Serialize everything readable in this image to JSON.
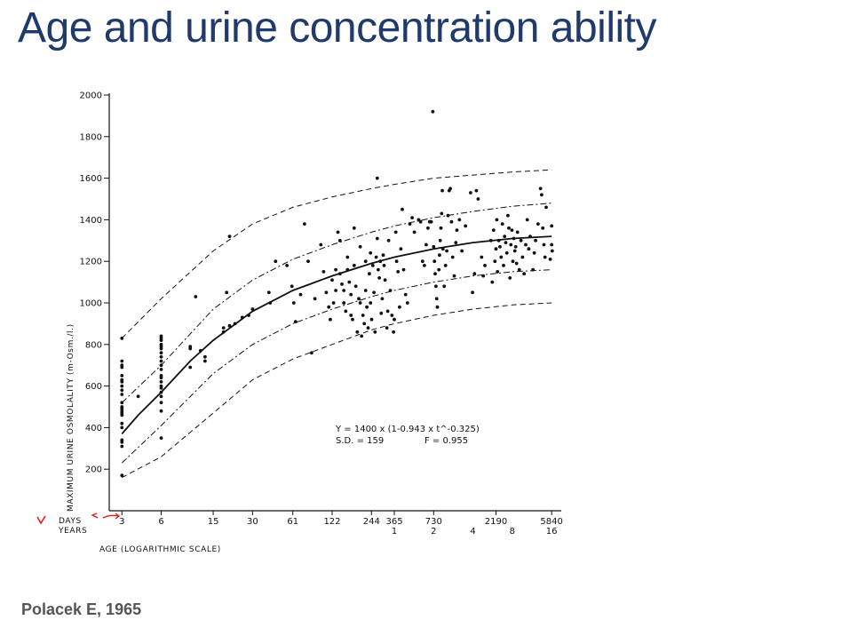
{
  "slide": {
    "title": "Age and urine concentration ability",
    "citation": "Polacek E, 1965"
  },
  "colors": {
    "title": "#1f3a6b",
    "citation": "#555555",
    "ink": "#111111",
    "annotation": "#e0201c"
  },
  "chart_data": {
    "type": "scatter",
    "x_scale": "log",
    "xlim": [
      2.4,
      6500
    ],
    "ylim": [
      0,
      2000
    ],
    "y_ticks": [
      200,
      400,
      600,
      800,
      1000,
      1200,
      1400,
      1600,
      1800,
      2000
    ],
    "x_ticks_days": [
      3,
      6,
      15,
      30,
      61,
      122,
      244,
      365,
      730,
      2190,
      5840
    ],
    "x_ticks_years": [
      {
        "days": 365,
        "label": "1"
      },
      {
        "days": 730,
        "label": "2"
      },
      {
        "days": 1460,
        "label": "4"
      },
      {
        "days": 2920,
        "label": "8"
      },
      {
        "days": 5840,
        "label": "16"
      }
    ],
    "days_label": "DAYS",
    "years_label": "YEARS",
    "xlabel": "AGE (LOGARITHMIC SCALE)",
    "ylabel": "MAXIMUM URINE OSMOLALITY (m-Osm./l.)",
    "equation": "Y = 1400 x (1-0.943 x t^-0.325)",
    "sd_text": "S.D. = 159",
    "f_text": "F = 0.955",
    "annotations": [
      "red check mark",
      "red arrow",
      "red arrow"
    ],
    "series": [
      {
        "style": "solid",
        "values": [
          [
            3,
            370
          ],
          [
            4,
            460
          ],
          [
            6,
            570
          ],
          [
            10,
            720
          ],
          [
            15,
            820
          ],
          [
            30,
            960
          ],
          [
            61,
            1060
          ],
          [
            122,
            1130
          ],
          [
            244,
            1190
          ],
          [
            365,
            1220
          ],
          [
            730,
            1260
          ],
          [
            1460,
            1290
          ],
          [
            2920,
            1310
          ],
          [
            5840,
            1320
          ]
        ]
      },
      {
        "style": "dashdot",
        "values": [
          [
            3,
            520
          ],
          [
            6,
            700
          ],
          [
            15,
            970
          ],
          [
            30,
            1110
          ],
          [
            61,
            1210
          ],
          [
            122,
            1280
          ],
          [
            244,
            1340
          ],
          [
            365,
            1370
          ],
          [
            730,
            1410
          ],
          [
            1460,
            1440
          ],
          [
            2920,
            1465
          ],
          [
            5840,
            1480
          ]
        ]
      },
      {
        "style": "dashdot",
        "values": [
          [
            3,
            230
          ],
          [
            6,
            410
          ],
          [
            15,
            660
          ],
          [
            30,
            800
          ],
          [
            61,
            900
          ],
          [
            122,
            970
          ],
          [
            244,
            1030
          ],
          [
            365,
            1060
          ],
          [
            730,
            1100
          ],
          [
            1460,
            1130
          ],
          [
            2920,
            1150
          ],
          [
            5840,
            1160
          ]
        ]
      },
      {
        "style": "dashed",
        "values": [
          [
            3,
            830
          ],
          [
            6,
            1020
          ],
          [
            15,
            1250
          ],
          [
            30,
            1380
          ],
          [
            61,
            1460
          ],
          [
            122,
            1510
          ],
          [
            244,
            1550
          ],
          [
            365,
            1570
          ],
          [
            730,
            1600
          ],
          [
            1460,
            1615
          ],
          [
            2920,
            1630
          ],
          [
            5840,
            1640
          ]
        ]
      },
      {
        "style": "dashed",
        "values": [
          [
            3,
            160
          ],
          [
            6,
            260
          ],
          [
            15,
            470
          ],
          [
            30,
            630
          ],
          [
            61,
            730
          ],
          [
            122,
            800
          ],
          [
            244,
            870
          ],
          [
            365,
            900
          ],
          [
            730,
            940
          ],
          [
            1460,
            970
          ],
          [
            2920,
            990
          ],
          [
            5840,
            1000
          ]
        ]
      }
    ],
    "points": [
      [
        3,
        830
      ],
      [
        3,
        720
      ],
      [
        3,
        700
      ],
      [
        3,
        690
      ],
      [
        3,
        650
      ],
      [
        3,
        630
      ],
      [
        3,
        620
      ],
      [
        3,
        600
      ],
      [
        3,
        580
      ],
      [
        3,
        560
      ],
      [
        3,
        520
      ],
      [
        3,
        500
      ],
      [
        3,
        490
      ],
      [
        3,
        480
      ],
      [
        3,
        470
      ],
      [
        3,
        460
      ],
      [
        3,
        420
      ],
      [
        3,
        400
      ],
      [
        3,
        340
      ],
      [
        3,
        330
      ],
      [
        3,
        310
      ],
      [
        3,
        170
      ],
      [
        4,
        550
      ],
      [
        6,
        840
      ],
      [
        6,
        830
      ],
      [
        6,
        820
      ],
      [
        6,
        800
      ],
      [
        6,
        790
      ],
      [
        6,
        780
      ],
      [
        6,
        760
      ],
      [
        6,
        740
      ],
      [
        6,
        720
      ],
      [
        6,
        700
      ],
      [
        6,
        680
      ],
      [
        6,
        650
      ],
      [
        6,
        640
      ],
      [
        6,
        620
      ],
      [
        6,
        600
      ],
      [
        6,
        590
      ],
      [
        6,
        570
      ],
      [
        6,
        550
      ],
      [
        6,
        520
      ],
      [
        6,
        480
      ],
      [
        6,
        350
      ],
      [
        10,
        790
      ],
      [
        10,
        780
      ],
      [
        10,
        690
      ],
      [
        11,
        1030
      ],
      [
        12,
        770
      ],
      [
        13,
        740
      ],
      [
        13,
        720
      ],
      [
        18,
        880
      ],
      [
        18,
        860
      ],
      [
        19,
        1050
      ],
      [
        20,
        1320
      ],
      [
        20,
        890
      ],
      [
        22,
        900
      ],
      [
        25,
        930
      ],
      [
        28,
        940
      ],
      [
        30,
        970
      ],
      [
        40,
        1050
      ],
      [
        41,
        1000
      ],
      [
        45,
        1200
      ],
      [
        55,
        1180
      ],
      [
        60,
        1080
      ],
      [
        62,
        1000
      ],
      [
        64,
        910
      ],
      [
        70,
        1040
      ],
      [
        75,
        1380
      ],
      [
        80,
        1200
      ],
      [
        85,
        760
      ],
      [
        90,
        1020
      ],
      [
        100,
        1280
      ],
      [
        105,
        1150
      ],
      [
        110,
        1050
      ],
      [
        115,
        980
      ],
      [
        118,
        920
      ],
      [
        122,
        1110
      ],
      [
        125,
        1000
      ],
      [
        130,
        1060
      ],
      [
        130,
        1160
      ],
      [
        135,
        1340
      ],
      [
        140,
        1300
      ],
      [
        140,
        1140
      ],
      [
        145,
        1090
      ],
      [
        150,
        1060
      ],
      [
        150,
        1000
      ],
      [
        155,
        960
      ],
      [
        160,
        1220
      ],
      [
        160,
        1160
      ],
      [
        165,
        1100
      ],
      [
        170,
        1040
      ],
      [
        170,
        940
      ],
      [
        175,
        920
      ],
      [
        180,
        1180
      ],
      [
        180,
        1360
      ],
      [
        185,
        1080
      ],
      [
        190,
        860
      ],
      [
        195,
        1020
      ],
      [
        200,
        1270
      ],
      [
        200,
        1000
      ],
      [
        205,
        840
      ],
      [
        210,
        940
      ],
      [
        215,
        900
      ],
      [
        220,
        1200
      ],
      [
        220,
        1060
      ],
      [
        225,
        980
      ],
      [
        230,
        880
      ],
      [
        235,
        1140
      ],
      [
        240,
        1240
      ],
      [
        240,
        1000
      ],
      [
        245,
        920
      ],
      [
        250,
        1180
      ],
      [
        255,
        1050
      ],
      [
        260,
        860
      ],
      [
        265,
        1220
      ],
      [
        270,
        1600
      ],
      [
        270,
        1310
      ],
      [
        275,
        1160
      ],
      [
        280,
        1120
      ],
      [
        285,
        1200
      ],
      [
        290,
        950
      ],
      [
        295,
        1020
      ],
      [
        300,
        1230
      ],
      [
        305,
        1180
      ],
      [
        310,
        1110
      ],
      [
        320,
        880
      ],
      [
        325,
        960
      ],
      [
        330,
        1300
      ],
      [
        340,
        1060
      ],
      [
        350,
        940
      ],
      [
        360,
        860
      ],
      [
        365,
        920
      ],
      [
        375,
        1340
      ],
      [
        380,
        1200
      ],
      [
        390,
        1150
      ],
      [
        400,
        980
      ],
      [
        410,
        1260
      ],
      [
        420,
        1450
      ],
      [
        430,
        1160
      ],
      [
        445,
        1040
      ],
      [
        460,
        1000
      ],
      [
        480,
        1380
      ],
      [
        500,
        1410
      ],
      [
        520,
        1340
      ],
      [
        560,
        1400
      ],
      [
        580,
        1390
      ],
      [
        600,
        1200
      ],
      [
        620,
        1180
      ],
      [
        640,
        1280
      ],
      [
        660,
        1360
      ],
      [
        680,
        1390
      ],
      [
        700,
        1390
      ],
      [
        720,
        1920
      ],
      [
        730,
        1270
      ],
      [
        740,
        1200
      ],
      [
        750,
        1140
      ],
      [
        760,
        1080
      ],
      [
        770,
        1020
      ],
      [
        780,
        980
      ],
      [
        800,
        1160
      ],
      [
        810,
        1230
      ],
      [
        820,
        1300
      ],
      [
        830,
        1360
      ],
      [
        840,
        1430
      ],
      [
        850,
        1540
      ],
      [
        860,
        1260
      ],
      [
        880,
        1080
      ],
      [
        900,
        1180
      ],
      [
        920,
        1250
      ],
      [
        940,
        1420
      ],
      [
        960,
        1540
      ],
      [
        980,
        1550
      ],
      [
        1000,
        1390
      ],
      [
        1020,
        1220
      ],
      [
        1050,
        1130
      ],
      [
        1080,
        1290
      ],
      [
        1100,
        1350
      ],
      [
        1150,
        1400
      ],
      [
        1200,
        1250
      ],
      [
        1280,
        1370
      ],
      [
        1400,
        1530
      ],
      [
        1450,
        1050
      ],
      [
        1500,
        1140
      ],
      [
        1550,
        1540
      ],
      [
        1600,
        1500
      ],
      [
        1700,
        1220
      ],
      [
        1750,
        1130
      ],
      [
        1800,
        1180
      ],
      [
        2000,
        1300
      ],
      [
        2050,
        1100
      ],
      [
        2100,
        1350
      ],
      [
        2150,
        1200
      ],
      [
        2190,
        1260
      ],
      [
        2220,
        1400
      ],
      [
        2250,
        1150
      ],
      [
        2300,
        1300
      ],
      [
        2350,
        1270
      ],
      [
        2400,
        1220
      ],
      [
        2450,
        1380
      ],
      [
        2500,
        1180
      ],
      [
        2550,
        1320
      ],
      [
        2600,
        1290
      ],
      [
        2650,
        1240
      ],
      [
        2700,
        1420
      ],
      [
        2750,
        1360
      ],
      [
        2800,
        1120
      ],
      [
        2850,
        1280
      ],
      [
        2900,
        1350
      ],
      [
        2950,
        1200
      ],
      [
        3000,
        1310
      ],
      [
        3050,
        1250
      ],
      [
        3100,
        1270
      ],
      [
        3150,
        1190
      ],
      [
        3200,
        1340
      ],
      [
        3300,
        1160
      ],
      [
        3400,
        1300
      ],
      [
        3500,
        1220
      ],
      [
        3600,
        1140
      ],
      [
        3700,
        1280
      ],
      [
        3800,
        1400
      ],
      [
        3900,
        1260
      ],
      [
        4000,
        1320
      ],
      [
        4200,
        1160
      ],
      [
        4300,
        1240
      ],
      [
        4400,
        1300
      ],
      [
        4600,
        1380
      ],
      [
        4800,
        1550
      ],
      [
        4900,
        1520
      ],
      [
        5000,
        1360
      ],
      [
        5100,
        1280
      ],
      [
        5200,
        1220
      ],
      [
        5300,
        1460
      ],
      [
        5840,
        1370
      ],
      [
        5840,
        1280
      ],
      [
        5900,
        1250
      ],
      [
        5700,
        1210
      ]
    ]
  }
}
